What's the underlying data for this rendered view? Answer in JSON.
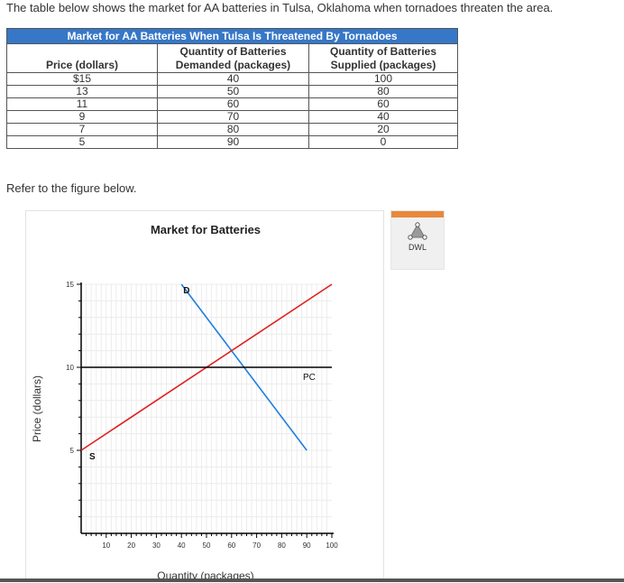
{
  "intro_text": "The table below shows the market for AA batteries in Tulsa, Oklahoma when tornadoes threaten the area.",
  "table": {
    "title": "Market for AA Batteries When Tulsa Is Threatened By Tornadoes",
    "headers": [
      "Price (dollars)",
      "Quantity of Batteries Demanded (packages)",
      "Quantity of Batteries Supplied (packages)"
    ],
    "rows": [
      [
        "$15",
        "40",
        "100"
      ],
      [
        "13",
        "50",
        "80"
      ],
      [
        "11",
        "60",
        "60"
      ],
      [
        "9",
        "70",
        "40"
      ],
      [
        "7",
        "80",
        "20"
      ],
      [
        "5",
        "90",
        "0"
      ]
    ]
  },
  "refer_text": "Refer to the figure below.",
  "tool": {
    "label": "DWL",
    "icon": "dwl-triangle-icon",
    "accent": "#e8883a"
  },
  "chart_data": {
    "type": "line",
    "title": "Market for Batteries",
    "xlabel": "Quantity (packages)",
    "ylabel": "Price (dollars)",
    "xlim": [
      0,
      100
    ],
    "ylim": [
      0,
      15
    ],
    "xticks": [
      10,
      20,
      30,
      40,
      50,
      60,
      70,
      80,
      90,
      100
    ],
    "yticks": [
      5,
      10,
      15
    ],
    "series": [
      {
        "name": "D",
        "color": "#1f7fe0",
        "points": [
          [
            40,
            15
          ],
          [
            90,
            5
          ]
        ]
      },
      {
        "name": "S",
        "color": "#e02020",
        "points": [
          [
            0,
            5
          ],
          [
            100,
            15
          ]
        ]
      },
      {
        "name": "PC",
        "color": "#000000",
        "points": [
          [
            0,
            10
          ],
          [
            100,
            10
          ]
        ]
      }
    ],
    "grid": true
  }
}
